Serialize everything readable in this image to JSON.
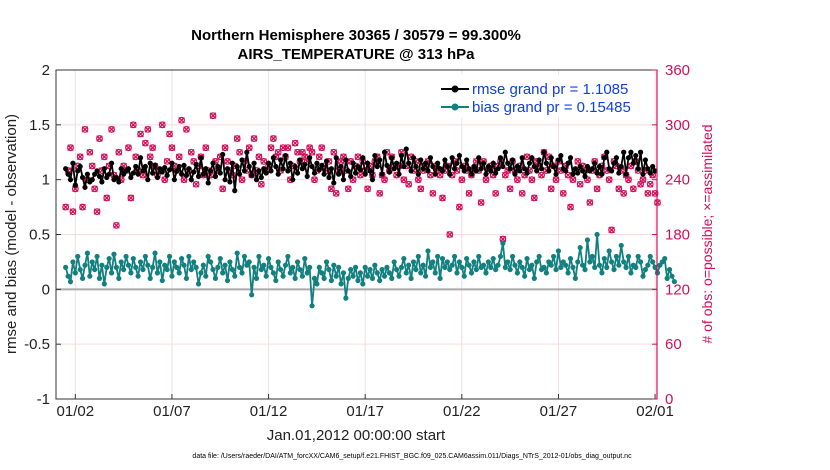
{
  "chart_data": {
    "type": "line",
    "title": "Northern Hemisphere 30365 / 30579 = 99.300%",
    "subtitle": "AIRS_TEMPERATURE @ 313 hPa",
    "xlabel": "Jan.01,2012 00:00:00 start",
    "ylabel": "rmse and bias (model - observation)",
    "y2label": "# of obs: o=possible; ×=assimilated",
    "footnote": "data file: /Users/raeder/DAI/ATM_forcXX/CAM6_setup/f.e21.FHIST_BGC.f09_025.CAM6assim.011/Diags_NTrS_2012-01/obs_diag_output.nc",
    "xlim": [
      0.5,
      31.6
    ],
    "ylim": [
      -1,
      2
    ],
    "y2lim": [
      0,
      360
    ],
    "x_ticks": [
      1.5,
      6.5,
      11.5,
      16.5,
      21.5,
      26.5,
      31.5
    ],
    "x_tick_labels": [
      "01/02",
      "01/07",
      "01/12",
      "01/17",
      "01/22",
      "01/27",
      "02/01"
    ],
    "y_ticks": [
      -1,
      -0.5,
      0,
      0.5,
      1,
      1.5,
      2
    ],
    "y_tick_labels": [
      "-1",
      "-0.5",
      "0",
      "0.5",
      "1",
      "1.5",
      "2"
    ],
    "y2_ticks": [
      0,
      60,
      120,
      180,
      240,
      300,
      360
    ],
    "y2_tick_labels": [
      "0",
      "60",
      "120",
      "180",
      "240",
      "300",
      "360"
    ],
    "grid": true,
    "legend_position": "top-right",
    "series": [
      {
        "name": "rmse grand pr = 1.1085",
        "color": "#000000",
        "axis": "left",
        "values": [
          1.1,
          1.05,
          1.0,
          1.15,
          0.95,
          1.08,
          1.12,
          1.02,
          0.93,
          1.05,
          0.98,
          1.0,
          1.05,
          1.08,
          1.03,
          0.98,
          1.1,
          1.02,
          1.05,
          1.15,
          1.0,
          1.02,
          0.98,
          1.1,
          1.05,
          1.08,
          1.1,
          1.02,
          1.06,
          1.12,
          1.05,
          1.2,
          1.08,
          1.12,
          1.0,
          1.15,
          1.06,
          1.13,
          1.02,
          1.1,
          1.07,
          1.11,
          1.04,
          1.09,
          1.15,
          1.0,
          1.08,
          1.12,
          1.05,
          1.13,
          1.04,
          1.1,
          1.0,
          1.07,
          1.14,
          1.03,
          1.2,
          1.05,
          1.1,
          0.97,
          1.08,
          1.15,
          1.03,
          1.12,
          1.06,
          1.23,
          1.0,
          1.1,
          0.98,
          1.15,
          0.9,
          1.12,
          1.05,
          1.18,
          1.08,
          1.25,
          1.12,
          1.04,
          1.15,
          1.0,
          1.08,
          1.02,
          1.1,
          1.06,
          1.15,
          1.08,
          1.2,
          1.12,
          1.05,
          1.18,
          1.1,
          1.22,
          1.08,
          1.15,
          1.0,
          1.12,
          1.06,
          1.18,
          1.1,
          1.14,
          1.03,
          1.2,
          1.12,
          1.06,
          1.15,
          1.09,
          1.13,
          1.05,
          1.17,
          1.02,
          1.1,
          0.97,
          1.2,
          1.05,
          1.12,
          1.0,
          1.18,
          1.08,
          1.03,
          1.15,
          1.06,
          1.12,
          1.09,
          1.2,
          1.05,
          1.15,
          1.08,
          1.0,
          1.22,
          1.12,
          1.18,
          1.05,
          1.25,
          1.13,
          1.07,
          1.2,
          1.1,
          1.15,
          1.05,
          1.22,
          1.12,
          1.28,
          1.15,
          1.08,
          1.2,
          1.12,
          1.05,
          1.18,
          1.1,
          1.15,
          1.08,
          1.2,
          1.12,
          1.05,
          1.15,
          1.1,
          1.08,
          1.18,
          1.12,
          1.05,
          1.2,
          1.1,
          1.15,
          1.22,
          1.12,
          1.08,
          1.18,
          1.1,
          1.05,
          1.12,
          1.08,
          1.2,
          1.1,
          1.15,
          1.05,
          1.12,
          1.08,
          1.15,
          1.06,
          1.1,
          1.2,
          1.12,
          1.25,
          1.15,
          1.1,
          1.18,
          1.05,
          1.12,
          1.08,
          1.2,
          1.1,
          1.06,
          1.15,
          1.2,
          1.12,
          1.08,
          1.18,
          1.1,
          1.25,
          1.15,
          1.08,
          1.2,
          1.12,
          1.05,
          1.18,
          1.22,
          1.1,
          1.08,
          1.15,
          1.2,
          1.05,
          1.1,
          1.06,
          1.12,
          1.08,
          1.03,
          1.12,
          1.08,
          1.1,
          1.15,
          1.06,
          1.12,
          1.05,
          1.2,
          1.25,
          1.1,
          1.08,
          1.15,
          1.2,
          1.06,
          1.12,
          1.25,
          1.05,
          1.2,
          1.25,
          1.15,
          1.22,
          1.1,
          1.25,
          1.05,
          1.18,
          1.1,
          1.06,
          1.12,
          1.08
        ]
      },
      {
        "name": "bias grand pr = 0.15485",
        "color": "#138080",
        "axis": "left",
        "values": [
          0.2,
          0.12,
          0.07,
          0.25,
          0.15,
          0.3,
          0.18,
          0.1,
          0.22,
          0.33,
          0.12,
          0.25,
          0.18,
          0.3,
          0.1,
          0.22,
          0.05,
          0.2,
          0.28,
          0.15,
          0.32,
          0.2,
          0.1,
          0.25,
          0.18,
          0.3,
          0.22,
          0.15,
          0.28,
          0.2,
          0.12,
          0.25,
          0.18,
          0.3,
          0.22,
          0.1,
          0.2,
          0.33,
          0.15,
          0.25,
          0.08,
          0.22,
          0.18,
          0.3,
          0.12,
          0.25,
          0.2,
          0.15,
          0.28,
          0.22,
          0.1,
          0.3,
          0.18,
          0.25,
          0.2,
          0.05,
          0.15,
          0.22,
          0.12,
          0.3,
          0.25,
          0.18,
          0.1,
          0.2,
          0.28,
          0.15,
          0.22,
          0.08,
          0.25,
          0.18,
          0.12,
          0.33,
          0.2,
          0.15,
          0.3,
          0.22,
          0.25,
          -0.05,
          0.2,
          0.1,
          0.3,
          0.18,
          0.22,
          0.12,
          0.28,
          0.2,
          0.15,
          0.08,
          0.25,
          0.18,
          0.12,
          0.22,
          0.3,
          0.15,
          0.2,
          0.1,
          0.25,
          0.18,
          0.12,
          0.28,
          0.15,
          0.2,
          -0.15,
          0.1,
          0.05,
          0.2,
          0.15,
          0.1,
          0.25,
          0.18,
          0.08,
          0.22,
          0.12,
          0.2,
          0.05,
          0.15,
          -0.08,
          0.1,
          0.18,
          0.12,
          0.2,
          0.08,
          0.15,
          0.05,
          0.2,
          0.12,
          0.18,
          0.1,
          0.22,
          0.15,
          0.08,
          0.18,
          0.12,
          0.2,
          0.15,
          0.1,
          0.25,
          0.18,
          0.12,
          0.2,
          0.28,
          0.15,
          0.22,
          0.1,
          0.25,
          0.18,
          0.3,
          0.15,
          0.22,
          0.12,
          0.35,
          0.2,
          0.25,
          0.15,
          0.3,
          0.1,
          0.28,
          0.2,
          0.25,
          0.18,
          0.22,
          0.3,
          0.15,
          0.25,
          0.2,
          0.12,
          0.28,
          0.22,
          0.15,
          0.25,
          0.18,
          0.3,
          0.2,
          0.22,
          0.15,
          0.25,
          0.2,
          0.28,
          0.18,
          0.22,
          0.3,
          0.42,
          0.2,
          0.25,
          0.18,
          0.3,
          0.22,
          0.15,
          0.25,
          0.2,
          0.12,
          0.28,
          0.18,
          0.22,
          0.1,
          0.25,
          0.3,
          0.18,
          0.2,
          0.15,
          0.25,
          0.22,
          0.3,
          0.18,
          0.35,
          0.2,
          0.25,
          0.22,
          0.15,
          0.28,
          0.2,
          0.1,
          0.25,
          0.38,
          0.22,
          0.18,
          0.45,
          0.25,
          0.3,
          0.2,
          0.5,
          0.22,
          0.15,
          0.28,
          0.2,
          0.35,
          0.25,
          0.18,
          0.3,
          0.22,
          0.4,
          0.25,
          0.2,
          0.3,
          0.15,
          0.22,
          0.2,
          0.3,
          0.25,
          0.12,
          0.18,
          0.22,
          0.3,
          0.25,
          0.2,
          0.15,
          0.22,
          0.25,
          0.28,
          0.1,
          0.18,
          0.12,
          0.07
        ]
      },
      {
        "name": "obs possible",
        "color": "#d0105a",
        "axis": "right",
        "marker": "o",
        "values": [
          210,
          250,
          275,
          205,
          230,
          255,
          265,
          210,
          295,
          240,
          270,
          255,
          230,
          205,
          285,
          250,
          265,
          220,
          255,
          295,
          245,
          190,
          270,
          240,
          255,
          250,
          275,
          220,
          300,
          265,
          250,
          290,
          245,
          280,
          295,
          265,
          275,
          255,
          245,
          250,
          300,
          240,
          260,
          290,
          275,
          255,
          250,
          265,
          305,
          240,
          295,
          250,
          270,
          260,
          235,
          255,
          265,
          245,
          275,
          250,
          245,
          310,
          260,
          250,
          265,
          230,
          275,
          260,
          250,
          245,
          255,
          285,
          270,
          240,
          260,
          250,
          275,
          245,
          285,
          250,
          265,
          235,
          260,
          250,
          255,
          275,
          285,
          265,
          270,
          250,
          275,
          265,
          275,
          240,
          255,
          280,
          270,
          260,
          270,
          265,
          260,
          275,
          270,
          240,
          250,
          265,
          275,
          255,
          250,
          260,
          230,
          270,
          225,
          250,
          260,
          265,
          250,
          230,
          260,
          240,
          255,
          265,
          245,
          260,
          250,
          230,
          255,
          245,
          260,
          265,
          225,
          245,
          240,
          270,
          250,
          265,
          255,
          245,
          255,
          270,
          240,
          255,
          235,
          265,
          250,
          260,
          240,
          230,
          250,
          255,
          260,
          245,
          225,
          255,
          250,
          245,
          220,
          250,
          255,
          180,
          245,
          260,
          250,
          210,
          240,
          255,
          250,
          225,
          245,
          250,
          260,
          250,
          215,
          260,
          240,
          250,
          255,
          245,
          225,
          255,
          260,
          175,
          245,
          250,
          230,
          260,
          250,
          240,
          255,
          225,
          245,
          265,
          250,
          240,
          220,
          260,
          255,
          245,
          270,
          250,
          265,
          230,
          255,
          240,
          260,
          250,
          225,
          255,
          245,
          210,
          240,
          250,
          260,
          235,
          255,
          250,
          240,
          215,
          250,
          260,
          230,
          245,
          255,
          265,
          250,
          240,
          185,
          260,
          255,
          230,
          250,
          225,
          245,
          240,
          255,
          230,
          260,
          250,
          235,
          240,
          250,
          225,
          235,
          245,
          225,
          215
        ]
      },
      {
        "name": "obs assimilated",
        "color": "#d0105a",
        "axis": "right",
        "marker": "x",
        "values": [
          210,
          250,
          275,
          205,
          230,
          255,
          265,
          210,
          295,
          240,
          270,
          255,
          230,
          205,
          285,
          250,
          265,
          220,
          255,
          295,
          245,
          190,
          270,
          240,
          255,
          250,
          275,
          220,
          300,
          265,
          250,
          290,
          245,
          280,
          295,
          265,
          275,
          255,
          245,
          250,
          300,
          240,
          260,
          290,
          275,
          255,
          250,
          265,
          305,
          240,
          295,
          250,
          270,
          260,
          235,
          255,
          265,
          245,
          275,
          250,
          245,
          310,
          260,
          250,
          265,
          230,
          275,
          260,
          250,
          245,
          255,
          285,
          270,
          240,
          260,
          250,
          275,
          245,
          285,
          250,
          265,
          235,
          260,
          250,
          255,
          275,
          285,
          265,
          270,
          250,
          275,
          265,
          275,
          240,
          255,
          280,
          270,
          260,
          270,
          265,
          260,
          275,
          270,
          240,
          250,
          265,
          275,
          255,
          250,
          260,
          230,
          270,
          225,
          250,
          260,
          265,
          250,
          230,
          260,
          240,
          255,
          265,
          245,
          260,
          250,
          230,
          255,
          245,
          260,
          265,
          225,
          245,
          240,
          270,
          250,
          265,
          255,
          245,
          255,
          270,
          240,
          255,
          235,
          265,
          250,
          260,
          240,
          230,
          250,
          255,
          260,
          245,
          225,
          255,
          250,
          245,
          220,
          250,
          255,
          180,
          245,
          260,
          250,
          210,
          240,
          255,
          250,
          225,
          245,
          250,
          260,
          250,
          215,
          260,
          240,
          250,
          255,
          245,
          225,
          255,
          260,
          175,
          245,
          250,
          230,
          260,
          250,
          240,
          255,
          225,
          245,
          265,
          250,
          240,
          220,
          260,
          255,
          245,
          270,
          250,
          265,
          230,
          255,
          240,
          260,
          250,
          225,
          255,
          245,
          210,
          240,
          250,
          260,
          235,
          255,
          250,
          240,
          215,
          250,
          260,
          230,
          245,
          255,
          265,
          250,
          240,
          185,
          260,
          255,
          230,
          250,
          225,
          245,
          240,
          255,
          230,
          260,
          250,
          235,
          240,
          250,
          225,
          235,
          245,
          225,
          215
        ]
      }
    ]
  }
}
